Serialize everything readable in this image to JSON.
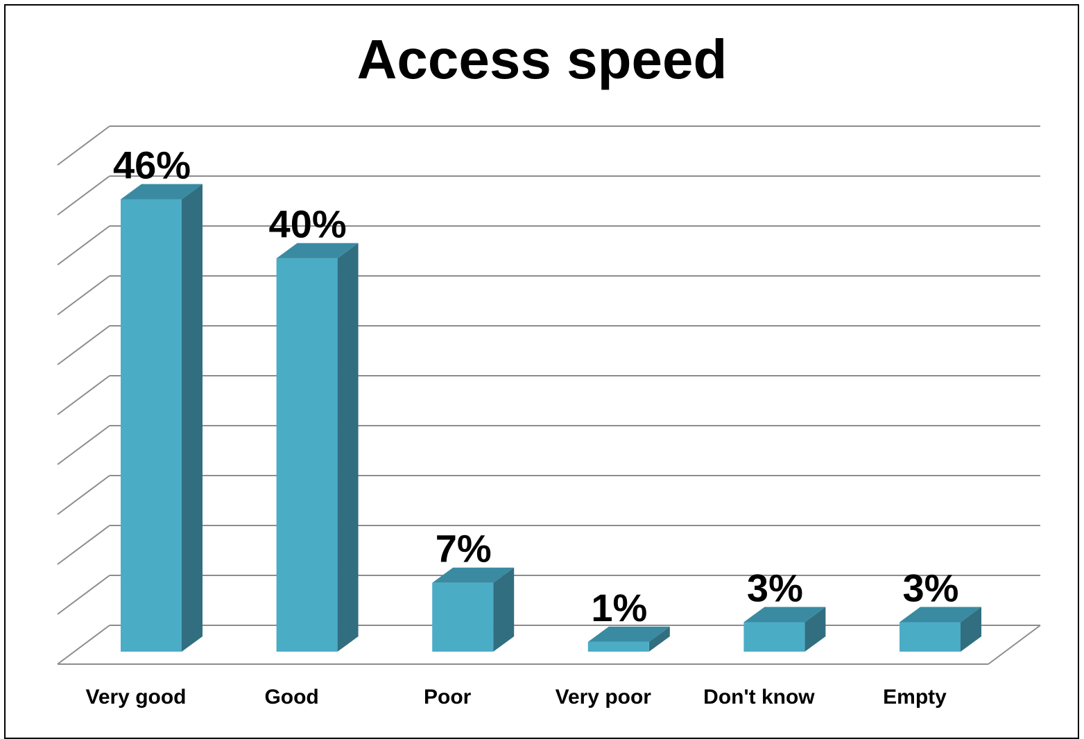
{
  "chart_data": {
    "type": "bar",
    "title": "Access speed",
    "categories": [
      "Very good",
      "Good",
      "Poor",
      "Very poor",
      "Don't know",
      "Empty"
    ],
    "values": [
      46,
      40,
      7,
      1,
      3,
      3
    ],
    "data_labels": [
      "46%",
      "40%",
      "7%",
      "1%",
      "3%",
      "3%"
    ],
    "unit": "%",
    "ylim": [
      0,
      50
    ],
    "grid": true,
    "three_d": true,
    "legend": "none"
  },
  "colors": {
    "bar_front": "#4BACC6",
    "bar_side": "#316E80",
    "bar_top": "#3A8BA1",
    "grid": "#8C8C8C"
  }
}
